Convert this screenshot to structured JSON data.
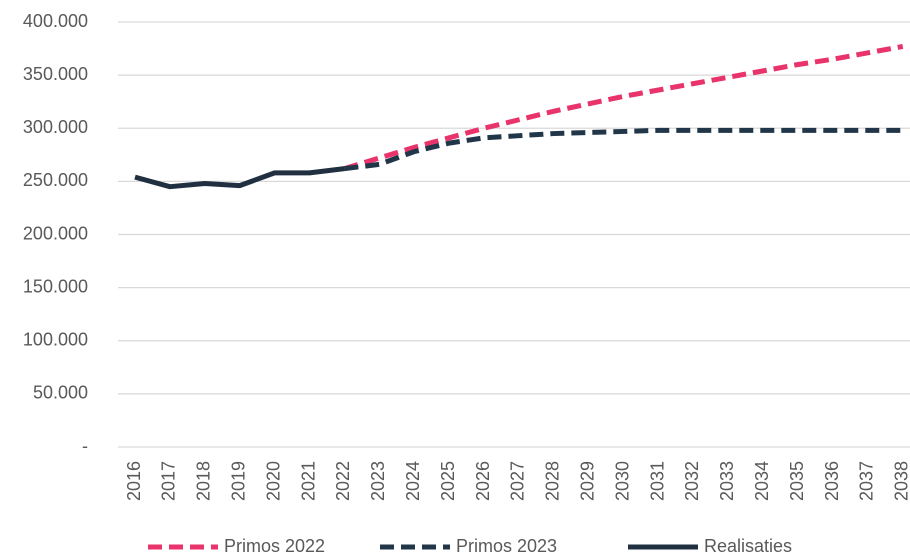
{
  "chart_data": {
    "type": "line",
    "categories": [
      "2016",
      "2017",
      "2018",
      "2019",
      "2020",
      "2021",
      "2022",
      "2023",
      "2024",
      "2025",
      "2026",
      "2027",
      "2028",
      "2029",
      "2030",
      "2031",
      "2032",
      "2033",
      "2034",
      "2035",
      "2036",
      "2037",
      "2038"
    ],
    "series": [
      {
        "name": "Primos 2022",
        "color": "#e8336b",
        "dash": true,
        "values": [
          null,
          null,
          null,
          null,
          null,
          null,
          262000,
          272000,
          282000,
          291000,
          300000,
          308000,
          316000,
          323000,
          330000,
          336000,
          342000,
          348000,
          354000,
          360000,
          365000,
          371000,
          377000
        ]
      },
      {
        "name": "Primos 2023",
        "color": "#22364a",
        "dash": true,
        "values": [
          null,
          null,
          null,
          null,
          null,
          null,
          262000,
          266000,
          278000,
          286000,
          291000,
          293000,
          295000,
          296000,
          297000,
          298000,
          298000,
          298000,
          298000,
          298000,
          298000,
          298000,
          298000
        ]
      },
      {
        "name": "Realisaties",
        "color": "#203040",
        "dash": false,
        "values": [
          254000,
          245000,
          248000,
          246000,
          258000,
          258000,
          262000,
          null,
          null,
          null,
          null,
          null,
          null,
          null,
          null,
          null,
          null,
          null,
          null,
          null,
          null,
          null,
          null
        ]
      }
    ],
    "ylim": [
      0,
      400000
    ],
    "yticks": [
      {
        "value": 0,
        "label": "-"
      },
      {
        "value": 50000,
        "label": "50.000"
      },
      {
        "value": 100000,
        "label": "100.000"
      },
      {
        "value": 150000,
        "label": "150.000"
      },
      {
        "value": 200000,
        "label": "200.000"
      },
      {
        "value": 250000,
        "label": "250.000"
      },
      {
        "value": 300000,
        "label": "300.000"
      },
      {
        "value": 350000,
        "label": "350.000"
      },
      {
        "value": 400000,
        "label": "400.000"
      }
    ],
    "grid": true,
    "legend": "bottom"
  }
}
